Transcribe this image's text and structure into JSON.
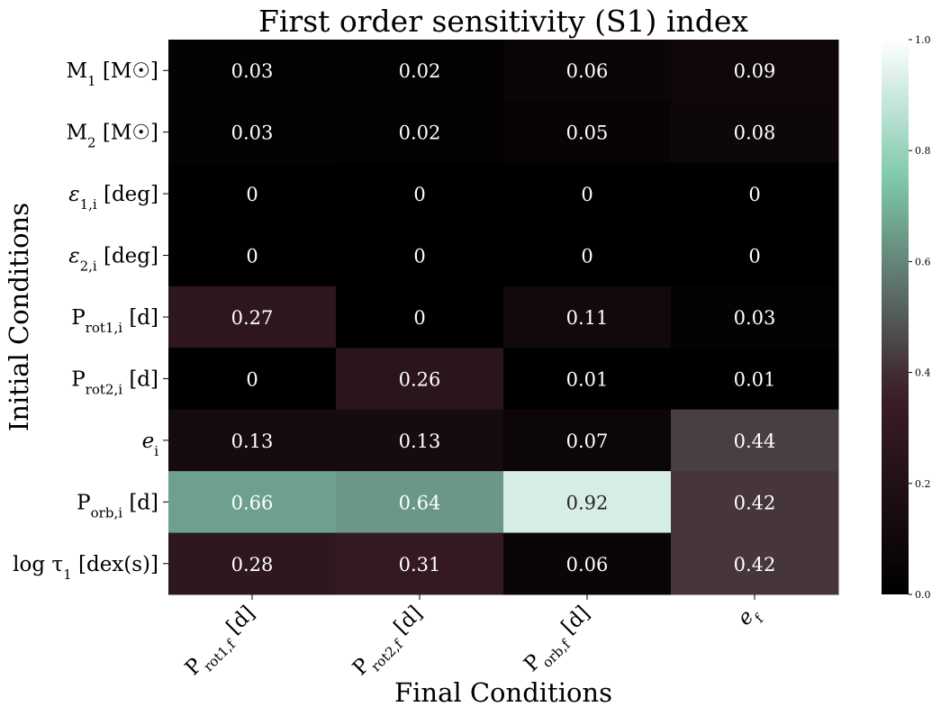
{
  "chart_data": {
    "type": "heatmap",
    "title": "First order sensitivity (S1) index",
    "xlabel": "Final Conditions",
    "ylabel": "Initial Conditions",
    "columns": [
      {
        "base": "P",
        "sub": "rot1,f",
        "unit": " [d]"
      },
      {
        "base": "P",
        "sub": "rot2,f",
        "unit": " [d]"
      },
      {
        "base": "P",
        "sub": "orb,f",
        "unit": " [d]"
      },
      {
        "base": "e",
        "sub": "f",
        "unit": "",
        "italic": true
      }
    ],
    "rows": [
      {
        "base": "M",
        "sub": "1",
        "unit": " [M☉]"
      },
      {
        "base": "M",
        "sub": "2",
        "unit": " [M☉]"
      },
      {
        "base": "ε",
        "sub": "1,i",
        "unit": " [deg]",
        "italic": true
      },
      {
        "base": "ε",
        "sub": "2,i",
        "unit": " [deg]",
        "italic": true
      },
      {
        "base": "P",
        "sub": "rot1,i",
        "unit": " [d]"
      },
      {
        "base": "P",
        "sub": "rot2,i",
        "unit": " [d]"
      },
      {
        "base": "e",
        "sub": "i",
        "unit": "",
        "italic": true
      },
      {
        "base": "P",
        "sub": "orb,i",
        "unit": " [d]"
      },
      {
        "base": "log τ",
        "sub": "1",
        "unit": " [dex(s)]"
      }
    ],
    "values": [
      [
        0.03,
        0.02,
        0.06,
        0.09
      ],
      [
        0.03,
        0.02,
        0.05,
        0.08
      ],
      [
        0,
        0,
        0,
        0
      ],
      [
        0,
        0,
        0,
        0
      ],
      [
        0.27,
        0,
        0.11,
        0.03
      ],
      [
        0,
        0.26,
        0.01,
        0.01
      ],
      [
        0.13,
        0.13,
        0.07,
        0.44
      ],
      [
        0.66,
        0.64,
        0.92,
        0.42
      ],
      [
        0.28,
        0.31,
        0.06,
        0.42
      ]
    ],
    "labels": [
      [
        "0.03",
        "0.02",
        "0.06",
        "0.09"
      ],
      [
        "0.03",
        "0.02",
        "0.05",
        "0.08"
      ],
      [
        "0",
        "0",
        "0",
        "0"
      ],
      [
        "0",
        "0",
        "0",
        "0"
      ],
      [
        "0.27",
        "0",
        "0.11",
        "0.03"
      ],
      [
        "0",
        "0.26",
        "0.01",
        "0.01"
      ],
      [
        "0.13",
        "0.13",
        "0.07",
        "0.44"
      ],
      [
        "0.66",
        "0.64",
        "0.92",
        "0.42"
      ],
      [
        "0.28",
        "0.31",
        "0.06",
        "0.42"
      ]
    ],
    "colormap": "bone",
    "vmin": 0.0,
    "vmax": 1.0,
    "colorbar": {
      "ticks": [
        0.0,
        0.2,
        0.4,
        0.6,
        0.8,
        1.0
      ],
      "tick_labels": [
        "0.0",
        "0.2",
        "0.4",
        "0.6",
        "0.8",
        "1.0"
      ]
    },
    "colors": {
      "text_light": "#ffffff",
      "text_dark": "#262626",
      "axis": "#000000"
    }
  }
}
